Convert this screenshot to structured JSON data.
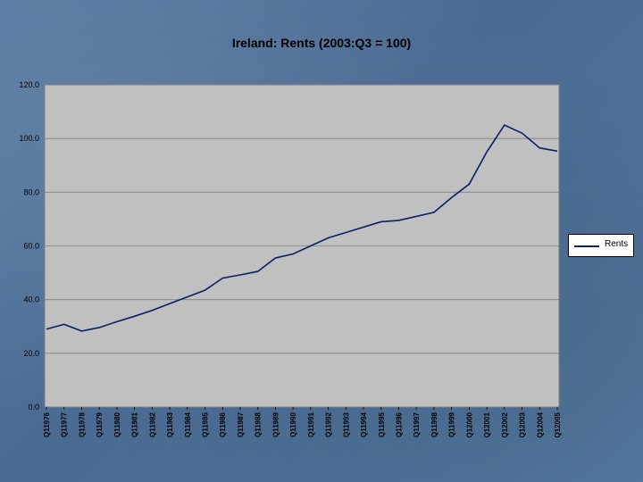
{
  "chart_data": {
    "type": "line",
    "title": "Ireland: Rents (2003:Q3 = 100)",
    "xlabel": "",
    "ylabel": "",
    "ylim": [
      0,
      120
    ],
    "y_ticks": [
      "0.0",
      "20.0",
      "40.0",
      "60.0",
      "80.0",
      "100.0",
      "120.0"
    ],
    "x_tick_labels": [
      "Q11976",
      "Q11977",
      "Q11978",
      "Q11979",
      "Q11980",
      "Q11981",
      "Q11982",
      "Q11983",
      "Q11984",
      "Q11985",
      "Q11986",
      "Q11987",
      "Q11988",
      "Q11989",
      "Q11990",
      "Q11991",
      "Q11992",
      "Q11993",
      "Q11994",
      "Q11995",
      "Q11996",
      "Q11997",
      "Q11998",
      "Q11999",
      "Q12000",
      "Q12001",
      "Q12002",
      "Q12003",
      "Q12004",
      "Q12005"
    ],
    "grid": true,
    "legend_position": "right",
    "series": [
      {
        "name": "Rents",
        "color": "#0b1f6b",
        "x": [
          "1976",
          "1977",
          "1978",
          "1979",
          "1980",
          "1981",
          "1982",
          "1983",
          "1984",
          "1985",
          "1986",
          "1987",
          "1988",
          "1989",
          "1990",
          "1991",
          "1992",
          "1993",
          "1994",
          "1995",
          "1996",
          "1997",
          "1998",
          "1999",
          "2000",
          "2001",
          "2002",
          "2003",
          "2004",
          "2005"
        ],
        "values": [
          29.0,
          30.8,
          28.3,
          29.6,
          31.8,
          33.8,
          36.0,
          38.5,
          41.0,
          43.5,
          48.0,
          49.2,
          50.5,
          55.5,
          57.0,
          60.0,
          63.0,
          65.0,
          67.0,
          69.0,
          69.5,
          71.0,
          72.5,
          78.0,
          83.0,
          95.0,
          105.0,
          102.0,
          96.5,
          95.3
        ]
      }
    ]
  }
}
